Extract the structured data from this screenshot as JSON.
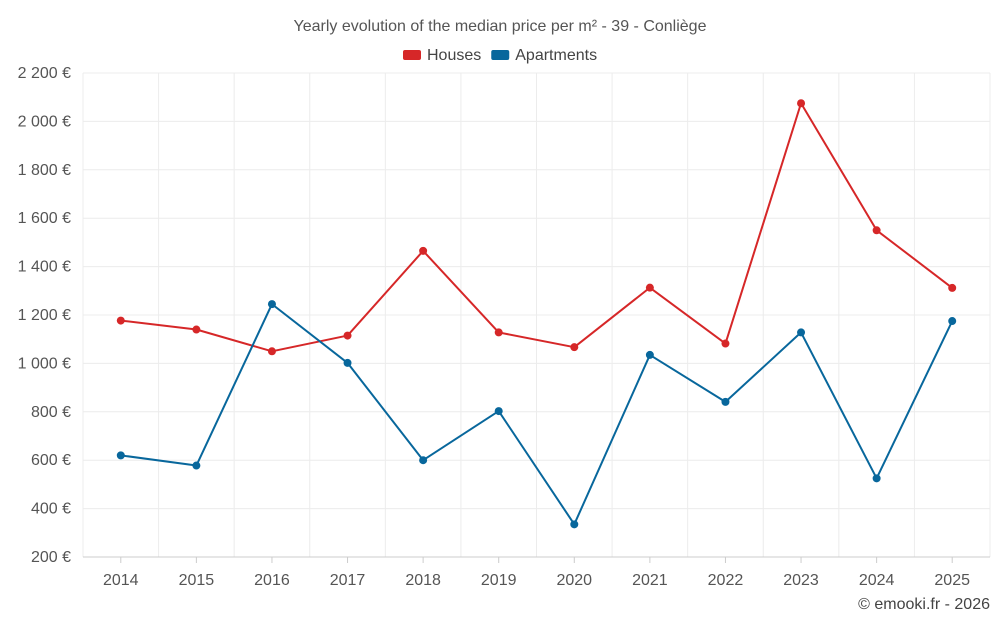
{
  "chart_data": {
    "type": "line",
    "title": "Yearly evolution of the median price per m² - 39 - Conliège",
    "xlabel": "",
    "ylabel": "",
    "categories": [
      "2014",
      "2015",
      "2016",
      "2017",
      "2018",
      "2019",
      "2020",
      "2021",
      "2022",
      "2023",
      "2024",
      "2025"
    ],
    "ylim": [
      200,
      2200
    ],
    "yticks": [
      200,
      400,
      600,
      800,
      1000,
      1200,
      1400,
      1600,
      1800,
      2000,
      2200
    ],
    "ytick_labels": [
      "200 €",
      "400 €",
      "600 €",
      "800 €",
      "1 000 €",
      "1 200 €",
      "1 400 €",
      "1 600 €",
      "1 800 €",
      "2 000 €",
      "2 200 €"
    ],
    "grid": true,
    "legend_position": "top-center",
    "series": [
      {
        "name": "Houses",
        "color": "#d62728",
        "values": [
          1177,
          1140,
          1050,
          1115,
          1465,
          1128,
          1067,
          1313,
          1082,
          2075,
          1550,
          1312
        ]
      },
      {
        "name": "Apartments",
        "color": "#08679c",
        "values": [
          620,
          578,
          1245,
          1002,
          600,
          803,
          335,
          1035,
          841,
          1128,
          525,
          1175
        ]
      }
    ]
  },
  "credit": "© emooki.fr - 2026"
}
